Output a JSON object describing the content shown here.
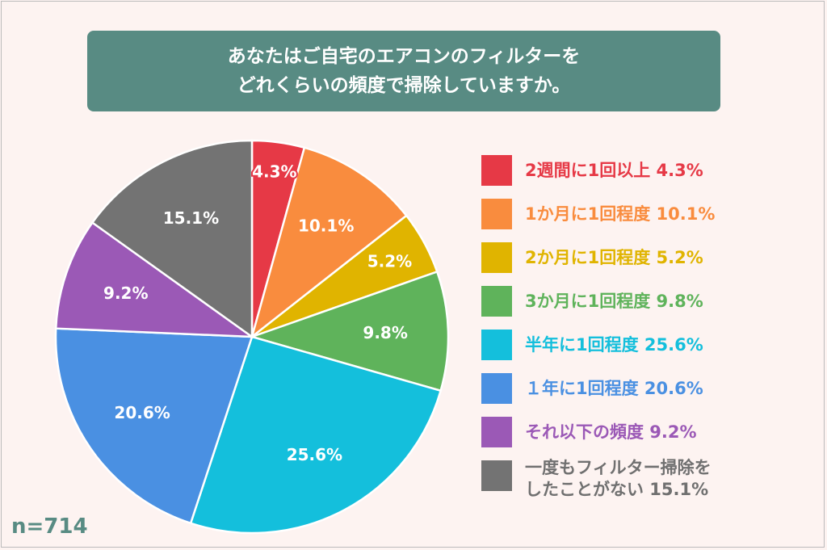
{
  "title_lines": [
    "あなたはご自宅のエアコンのフィルターを",
    "どれくらいの頻度で掃除していますか。"
  ],
  "sample_size": "n=714",
  "chart_data": {
    "type": "pie",
    "start": "top, clockwise",
    "categories": [
      "2週間に1回以上",
      "1か月に1回程度",
      "2か月に1回程度",
      "3か月に1回程度",
      "半年に1回程度",
      "１年に1回程度",
      "それ以下の頻度",
      "一度もフィルター掃除をしたことがない"
    ],
    "values": [
      4.3,
      10.1,
      5.2,
      9.8,
      25.6,
      20.6,
      9.2,
      15.1
    ],
    "data_labels": [
      "4.3%",
      "10.1%",
      "5.2%",
      "9.8%",
      "25.6%",
      "20.6%",
      "9.2%",
      "15.1%"
    ],
    "colors": [
      "#e63946",
      "#f98c3e",
      "#e0b400",
      "#5fb35b",
      "#14bfdc",
      "#4a90e2",
      "#9b59b6",
      "#737373"
    ],
    "legend_labels": [
      "2週間に1回以上 4.3%",
      "1か月に1回程度 10.1%",
      "2か月に1回程度 5.2%",
      "3か月に1回程度 9.8%",
      "半年に1回程度 25.6%",
      "１年に1回程度 20.6%",
      "それ以下の頻度 9.2%",
      "一度もフィルター掃除を\nしたことがない 15.1%"
    ],
    "legend_placement": "right"
  }
}
